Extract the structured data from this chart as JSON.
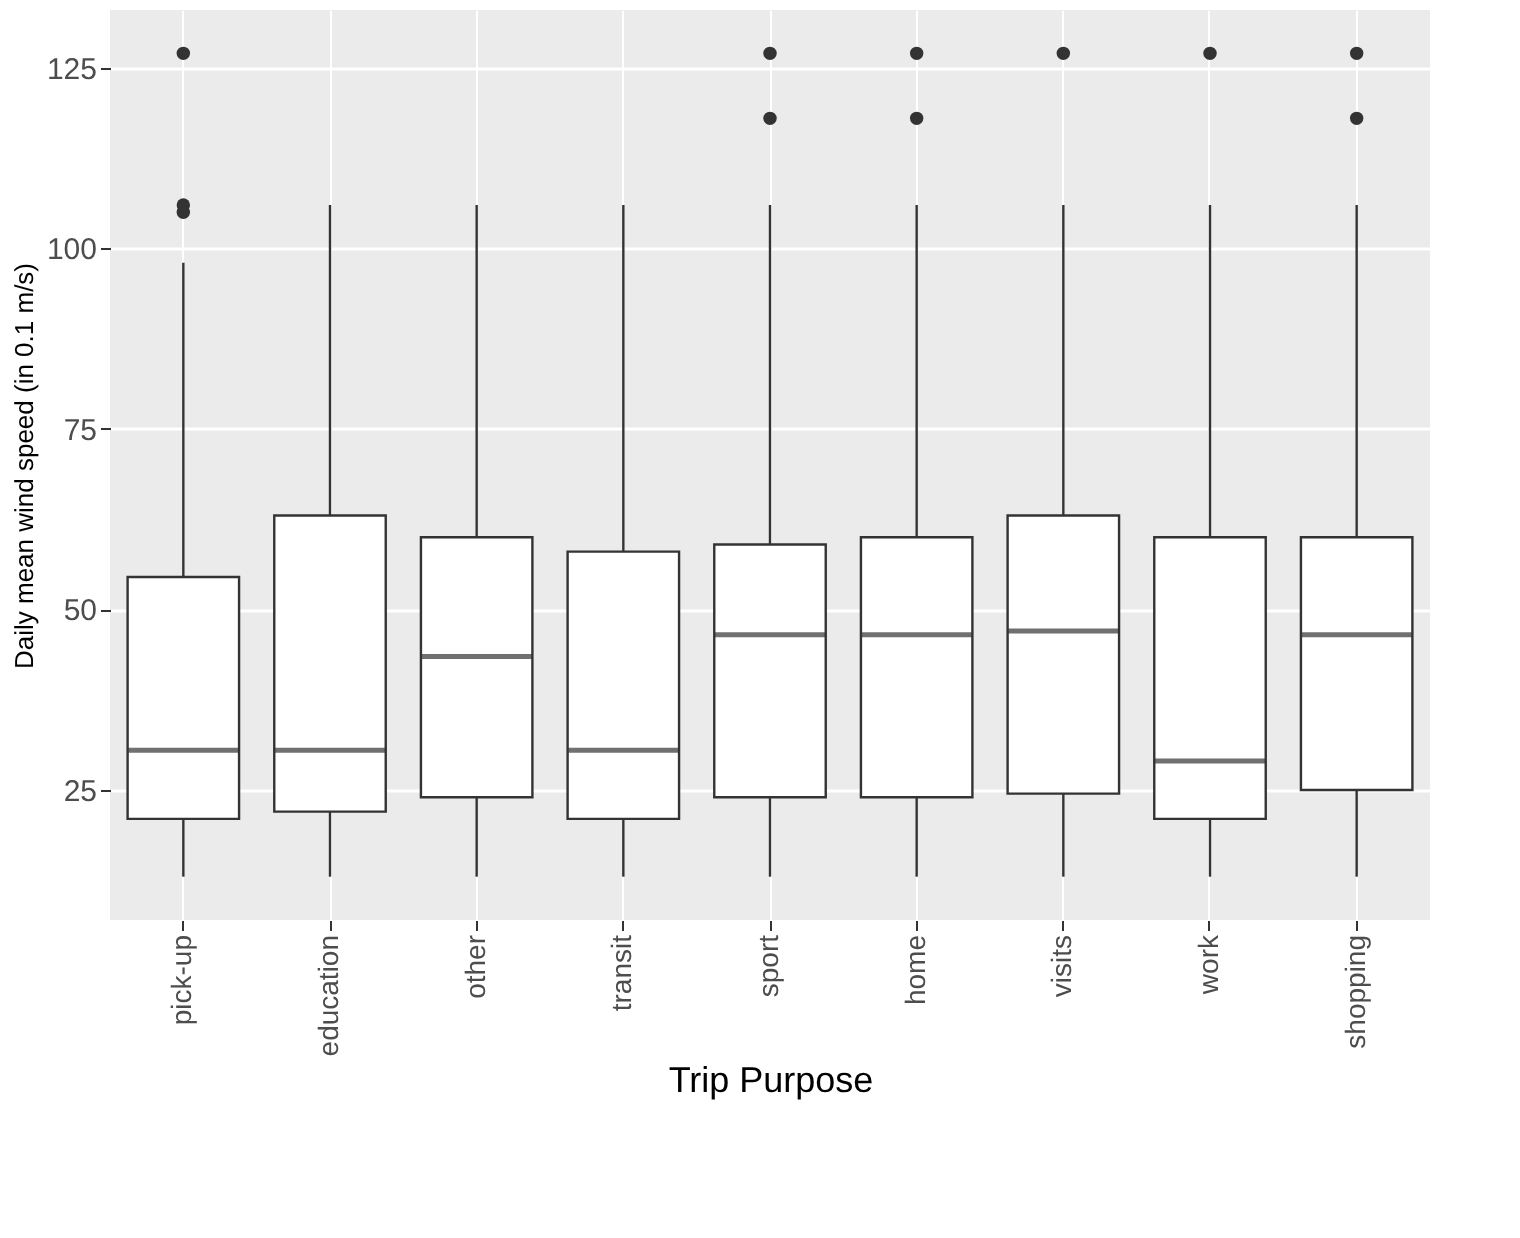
{
  "chart_data": {
    "type": "box",
    "xlabel": "Trip Purpose",
    "ylabel": "Daily mean wind speed (in 0.1 m/s)",
    "categories": [
      "pick-up",
      "education",
      "other",
      "transit",
      "sport",
      "home",
      "visits",
      "work",
      "shopping"
    ],
    "boxes": [
      {
        "low": 13,
        "q1": 21,
        "median": 30.5,
        "q3": 54.5,
        "high": 98,
        "outliers": [
          105,
          106,
          127
        ]
      },
      {
        "low": 13,
        "q1": 22,
        "median": 30.5,
        "q3": 63,
        "high": 106
      },
      {
        "low": 13,
        "q1": 24,
        "median": 43.5,
        "q3": 60,
        "high": 106
      },
      {
        "low": 13,
        "q1": 21,
        "median": 30.5,
        "q3": 58,
        "high": 106
      },
      {
        "low": 13,
        "q1": 24,
        "median": 46.5,
        "q3": 59,
        "high": 106,
        "outliers": [
          118,
          127
        ]
      },
      {
        "low": 13,
        "q1": 24,
        "median": 46.5,
        "q3": 60,
        "high": 106,
        "outliers": [
          118,
          127
        ]
      },
      {
        "low": 13,
        "q1": 24.5,
        "median": 47,
        "q3": 63,
        "high": 106,
        "outliers": [
          127
        ]
      },
      {
        "low": 13,
        "q1": 21,
        "median": 29,
        "q3": 60,
        "high": 106,
        "outliers": [
          127
        ]
      },
      {
        "low": 13,
        "q1": 25,
        "median": 46.5,
        "q3": 60,
        "high": 106,
        "outliers": [
          118,
          127
        ]
      }
    ],
    "ylim": [
      7,
      133
    ],
    "yticks": [
      25,
      50,
      75,
      100,
      125
    ],
    "grid": true
  }
}
